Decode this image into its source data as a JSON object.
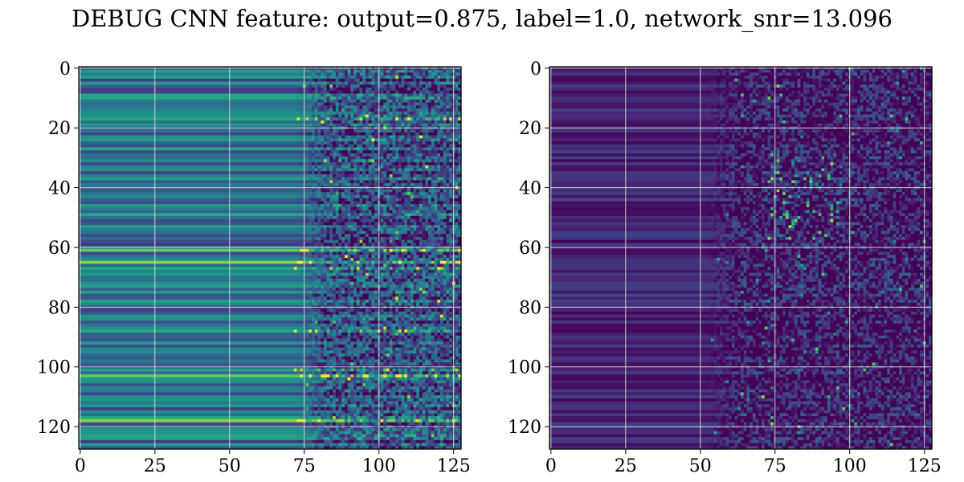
{
  "figure_title": "DEBUG CNN feature: output=0.875, label=1.0, network_snr=13.096",
  "chart_data": [
    {
      "type": "heatmap",
      "title": "",
      "xlabel": "",
      "ylabel": "",
      "grid": true,
      "colormap": "viridis",
      "rows": 128,
      "cols": 128,
      "xlim": [
        0,
        127
      ],
      "ylim": [
        127,
        0
      ],
      "x_ticks": [
        0,
        25,
        50,
        75,
        100,
        125
      ],
      "y_ticks": [
        0,
        20,
        40,
        60,
        80,
        100,
        120
      ],
      "x_tick_labels": [
        "0",
        "25",
        "50",
        "75",
        "100",
        "125"
      ],
      "y_tick_labels": [
        "0",
        "20",
        "40",
        "60",
        "80",
        "100",
        "120"
      ],
      "pattern": "smooth horizontal bands for columns 0-70 (values ~0.25-0.55), noisy speckled texture for columns 75-127 with bright yellow spots near rows 60-66 and 103",
      "seed": 7,
      "base_level": 0.38,
      "band_amplitude": 0.22,
      "noise_amplitude": 0.55,
      "bright_rows": [
        17,
        31,
        61,
        65,
        67,
        88,
        101,
        103,
        118
      ]
    },
    {
      "type": "heatmap",
      "title": "",
      "xlabel": "",
      "ylabel": "",
      "grid": true,
      "colormap": "viridis",
      "rows": 128,
      "cols": 128,
      "xlim": [
        0,
        127
      ],
      "ylim": [
        127,
        0
      ],
      "x_ticks": [
        0,
        25,
        50,
        75,
        100,
        125
      ],
      "y_ticks": [
        0,
        20,
        40,
        60,
        80,
        100,
        120
      ],
      "x_tick_labels": [
        "0",
        "25",
        "50",
        "75",
        "100",
        "125"
      ],
      "y_tick_labels": [
        "0",
        "20",
        "40",
        "60",
        "80",
        "100",
        "120"
      ],
      "pattern": "dark purple bands for columns 0-50 (values ~0.05-0.2), noisy dim texture for columns 55-127 with bright spots concentrated near columns 75-95, rows 30-55",
      "seed": 13,
      "base_level": 0.1,
      "band_amplitude": 0.09,
      "noise_amplitude": 0.45,
      "bright_rows": [
        35,
        43,
        44,
        52,
        76,
        94
      ]
    }
  ]
}
